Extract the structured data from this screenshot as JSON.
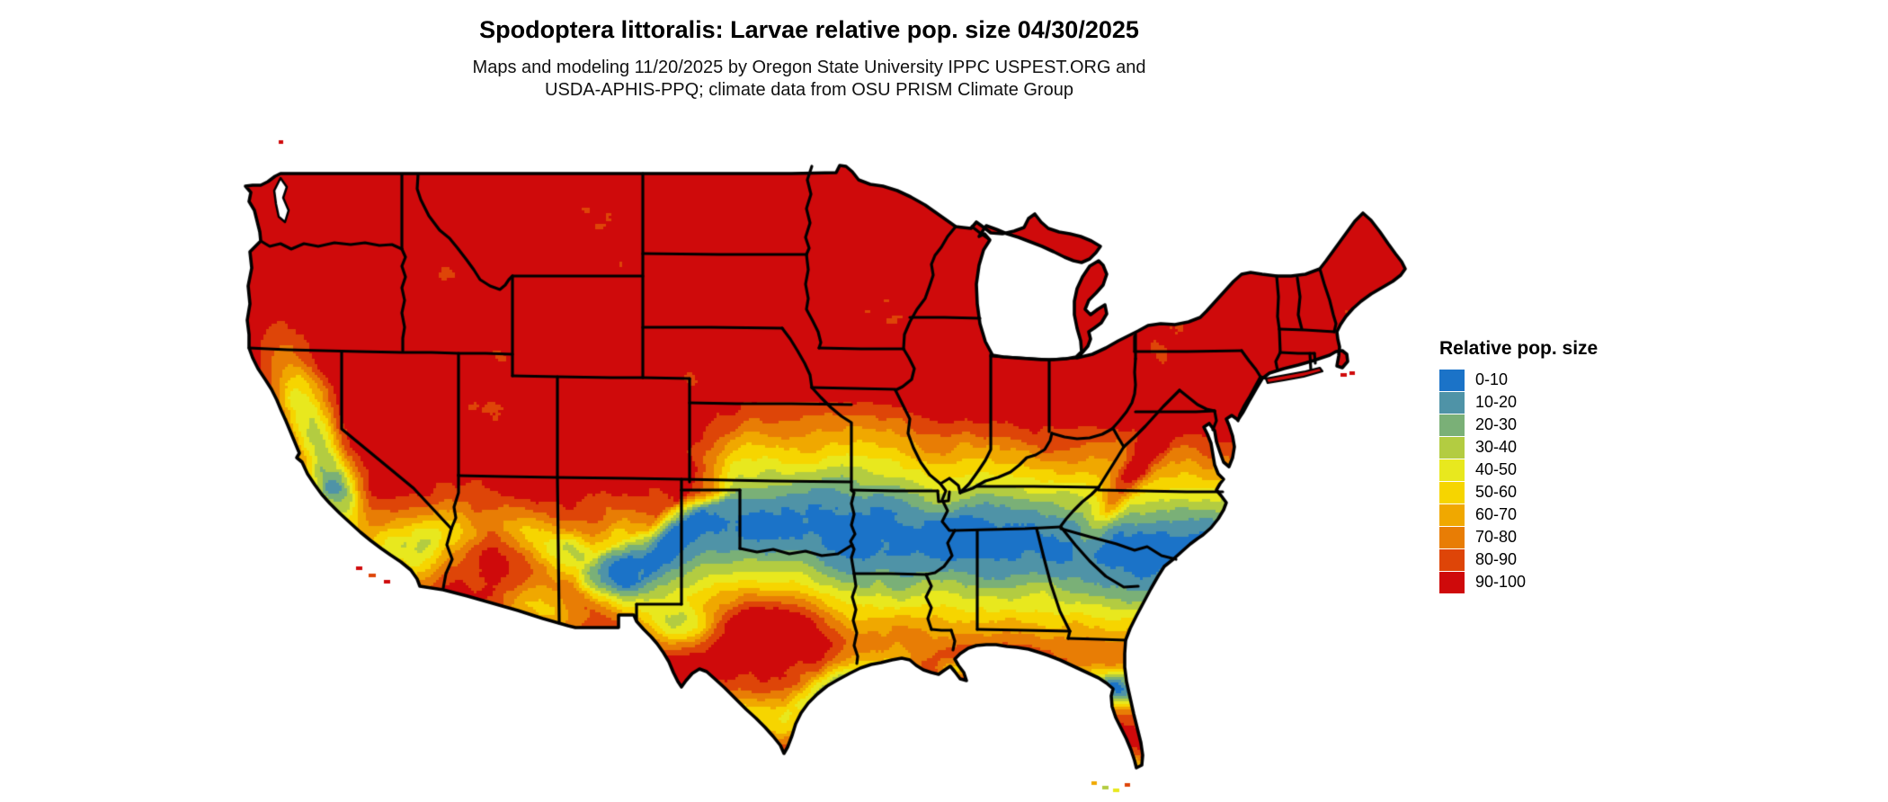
{
  "header": {
    "title": "Spodoptera littoralis: Larvae relative pop. size 04/30/2025",
    "subtitle_line1": "Maps and modeling 11/20/2025 by Oregon State University IPPC USPEST.ORG and",
    "subtitle_line2": "USDA-APHIS-PPQ; climate data from OSU PRISM Climate Group"
  },
  "legend": {
    "title": "Relative pop. size",
    "entries": [
      {
        "label": "0-10",
        "color": "#1b73c8"
      },
      {
        "label": "10-20",
        "color": "#4f93a7"
      },
      {
        "label": "20-30",
        "color": "#7ab077"
      },
      {
        "label": "30-40",
        "color": "#b3cc41"
      },
      {
        "label": "40-50",
        "color": "#e8e81e"
      },
      {
        "label": "50-60",
        "color": "#f6d500"
      },
      {
        "label": "60-70",
        "color": "#f0a800"
      },
      {
        "label": "70-80",
        "color": "#e87d05"
      },
      {
        "label": "80-90",
        "color": "#de4508"
      },
      {
        "label": "90-100",
        "color": "#cf0a0b"
      }
    ]
  },
  "map": {
    "region": "Conterminous United States",
    "water_color": "#ffffff",
    "border_color": "#000000"
  },
  "chart_data": {
    "type": "heatmap",
    "subtype": "choropleth-raster-map",
    "title": "Spodoptera littoralis: Larvae relative pop. size 04/30/2025",
    "legend_title": "Relative pop. size",
    "bins": [
      "0-10",
      "10-20",
      "20-30",
      "30-40",
      "40-50",
      "50-60",
      "60-70",
      "70-80",
      "80-90",
      "90-100"
    ],
    "bin_colors": [
      "#1b73c8",
      "#4f93a7",
      "#7ab077",
      "#b3cc41",
      "#e8e81e",
      "#f6d500",
      "#f0a800",
      "#e87d05",
      "#de4508",
      "#cf0a0b"
    ],
    "region": "Conterminous United States",
    "legend_position": "right",
    "pattern_summary": "Northern states uniformly 90-100 (red); east-west banded transition through the central US dropping to 0-10 (blue) across Oklahoma, Arkansas, Tennessee and the Carolinas; values rise again to 90-100 along the Gulf Coast and interior Texas; secondary low bands along the Texas coastal bend and central Florida; mountain-driven mosaics of low values in the Sierra Nevada, southern California, Arizona and New Mexico."
  }
}
